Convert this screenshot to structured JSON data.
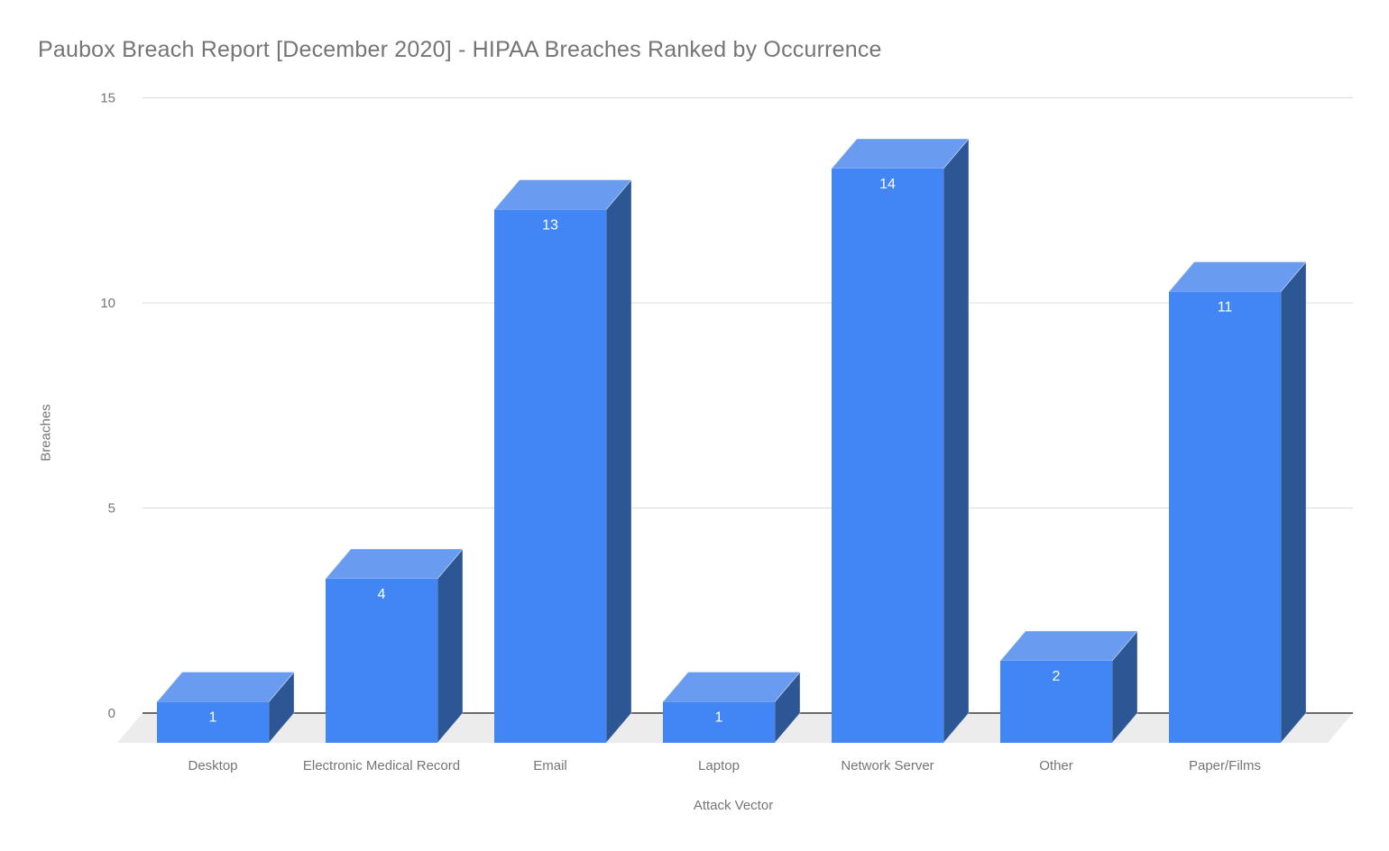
{
  "chart_data": {
    "type": "bar",
    "style": "3d-column",
    "title": "Paubox Breach Report [December 2020] - HIPAA Breaches Ranked by Occurrence",
    "xlabel": "Attack Vector",
    "ylabel": "Breaches",
    "categories": [
      "Desktop",
      "Electronic Medical Record",
      "Email",
      "Laptop",
      "Network Server",
      "Other",
      "Paper/Films"
    ],
    "values": [
      1,
      4,
      13,
      1,
      14,
      2,
      11
    ],
    "ylim": [
      0,
      15
    ],
    "yticks": [
      0,
      5,
      10,
      15
    ],
    "grid": true,
    "legend": "none",
    "value_labels_shown": true,
    "colors": {
      "bar_front": "#4285f4",
      "bar_top": "#699cf0",
      "bar_side": "#2d5695",
      "bar_edge": "rgba(255,255,255,0.45)",
      "floor": "#ececec",
      "gridline": "#dcdcdc",
      "baseline": "#3c3c3c",
      "axis_text": "#757575",
      "title_text": "#757575",
      "value_label": "#ffffff"
    }
  }
}
